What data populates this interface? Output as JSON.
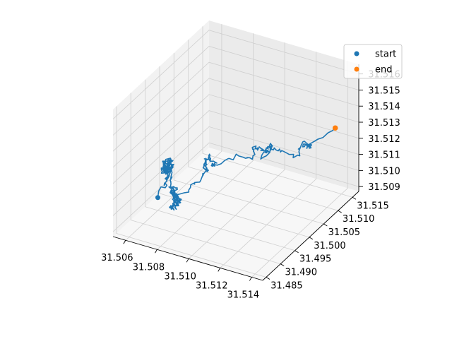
{
  "chart_data": {
    "type": "line3d",
    "title": "",
    "xlabel": "",
    "ylabel": "",
    "zlabel": "",
    "grid": true,
    "legend_position": "top-right",
    "xlim": [
      31.5052,
      31.5147
    ],
    "ylim": [
      31.4838,
      31.5172
    ],
    "zlim": [
      31.5087,
      31.5166
    ],
    "x_ticks": [
      "31.506",
      "31.508",
      "31.510",
      "31.512",
      "31.514"
    ],
    "y_ticks": [
      "31.485",
      "31.490",
      "31.495",
      "31.500",
      "31.505",
      "31.510",
      "31.515"
    ],
    "z_ticks": [
      "31.509",
      "31.510",
      "31.511",
      "31.512",
      "31.513",
      "31.514",
      "31.515",
      "31.516"
    ],
    "colors": {
      "line": "#1f77b4",
      "start": "#1f77b4",
      "end": "#ff7f0e"
    },
    "legend": [
      {
        "label": "start",
        "color": "#1f77b4"
      },
      {
        "label": "end",
        "color": "#ff7f0e"
      }
    ],
    "path": {
      "seed": 20,
      "steps": 520,
      "clusters": [
        {
          "x": 31.5066,
          "y": 31.495,
          "z": 31.5115,
          "w": 3.0
        },
        {
          "x": 31.507,
          "y": 31.495,
          "z": 31.5095,
          "w": 2.0
        },
        {
          "x": 31.5088,
          "y": 31.4985,
          "z": 31.5118,
          "w": 1.2
        },
        {
          "x": 31.5108,
          "y": 31.506,
          "z": 31.5118,
          "w": 1.0
        },
        {
          "x": 31.5128,
          "y": 31.51,
          "z": 31.5122,
          "w": 0.8
        }
      ]
    },
    "series": [
      {
        "name": "start",
        "type": "point",
        "x": 31.506,
        "y": 31.495,
        "z": 31.5095
      },
      {
        "name": "end",
        "type": "point",
        "x": 31.5137,
        "y": 31.5145,
        "z": 31.5128
      }
    ]
  }
}
